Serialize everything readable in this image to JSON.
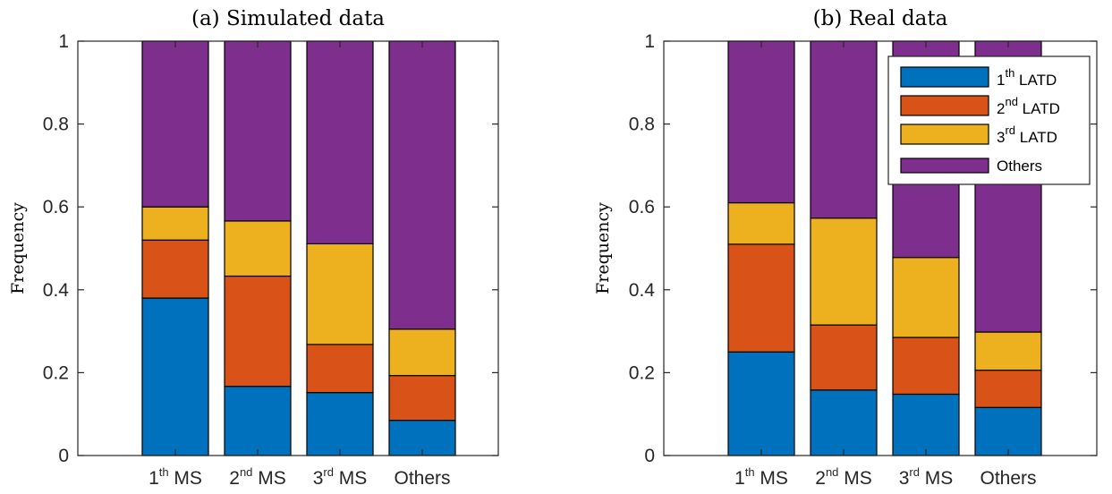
{
  "colors": {
    "seg1": "#0072BD",
    "seg2": "#D95319",
    "seg3": "#EDB120",
    "seg4": "#7E2F8E"
  },
  "chart_data": [
    {
      "type": "bar",
      "stacked": true,
      "title": "(a) Simulated data",
      "xlabel": "",
      "ylabel": "Frequency",
      "ylim": [
        0,
        1
      ],
      "yticks": [
        "0",
        "0.2",
        "0.4",
        "0.6",
        "0.8",
        "1"
      ],
      "categories": [
        {
          "base": "1",
          "sup": "th",
          "tail": " MS"
        },
        {
          "base": "2",
          "sup": "nd",
          "tail": " MS"
        },
        {
          "base": "3",
          "sup": "rd",
          "tail": " MS"
        },
        {
          "base": "Others",
          "sup": "",
          "tail": ""
        }
      ],
      "series": [
        {
          "name": "1th LATD",
          "values": [
            0.38,
            0.167,
            0.152,
            0.085
          ]
        },
        {
          "name": "2nd LATD",
          "values": [
            0.14,
            0.266,
            0.116,
            0.108
          ]
        },
        {
          "name": "3rd LATD",
          "values": [
            0.08,
            0.133,
            0.243,
            0.112
          ]
        },
        {
          "name": "Others",
          "values": [
            0.4,
            0.434,
            0.489,
            0.695
          ]
        }
      ],
      "legend": null,
      "grid": false
    },
    {
      "type": "bar",
      "stacked": true,
      "title": "(b) Real data",
      "xlabel": "",
      "ylabel": "Frequency",
      "ylim": [
        0,
        1
      ],
      "yticks": [
        "0",
        "0.2",
        "0.4",
        "0.6",
        "0.8",
        "1"
      ],
      "categories": [
        {
          "base": "1",
          "sup": "th",
          "tail": " MS"
        },
        {
          "base": "2",
          "sup": "nd",
          "tail": " MS"
        },
        {
          "base": "3",
          "sup": "rd",
          "tail": " MS"
        },
        {
          "base": "Others",
          "sup": "",
          "tail": ""
        }
      ],
      "series": [
        {
          "name": "1th LATD",
          "values": [
            0.25,
            0.158,
            0.148,
            0.116
          ]
        },
        {
          "name": "2nd LATD",
          "values": [
            0.26,
            0.157,
            0.137,
            0.09
          ]
        },
        {
          "name": "3rd LATD",
          "values": [
            0.1,
            0.258,
            0.193,
            0.092
          ]
        },
        {
          "name": "Others",
          "values": [
            0.39,
            0.427,
            0.522,
            0.702
          ]
        }
      ],
      "legend": {
        "position": "top-right",
        "entries": [
          {
            "base": "1",
            "sup": "th",
            "tail": " LATD"
          },
          {
            "base": "2",
            "sup": "nd",
            "tail": " LATD"
          },
          {
            "base": "3",
            "sup": "rd",
            "tail": " LATD"
          },
          {
            "base": "Others",
            "sup": "",
            "tail": ""
          }
        ]
      },
      "grid": false
    }
  ]
}
